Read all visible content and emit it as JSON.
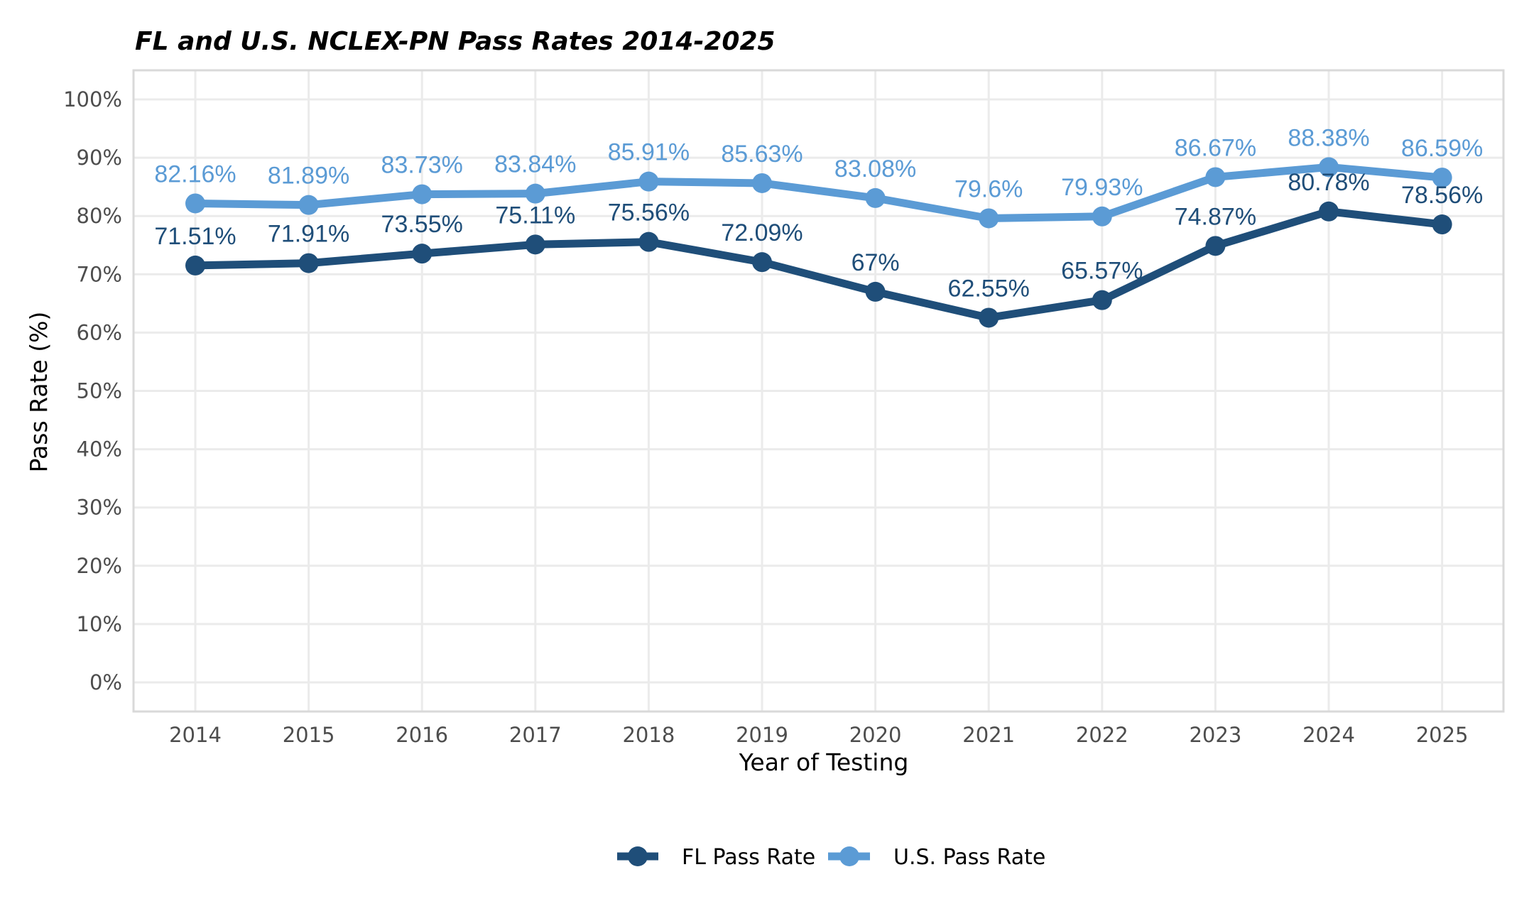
{
  "chart_data": {
    "type": "line",
    "title": "FL and U.S. NCLEX-PN Pass Rates 2014-2025",
    "xlabel": "Year of Testing",
    "ylabel": "Pass Rate (%)",
    "categories": [
      "2014",
      "2015",
      "2016",
      "2017",
      "2018",
      "2019",
      "2020",
      "2021",
      "2022",
      "2023",
      "2024",
      "2025"
    ],
    "ylim": [
      0,
      100
    ],
    "yticks": [
      0,
      10,
      20,
      30,
      40,
      50,
      60,
      70,
      80,
      90,
      100
    ],
    "ytick_labels": [
      "0%",
      "10%",
      "20%",
      "30%",
      "40%",
      "50%",
      "60%",
      "70%",
      "80%",
      "90%",
      "100%"
    ],
    "grid": true,
    "legend_position": "bottom",
    "series": [
      {
        "name": "FL Pass Rate",
        "color": "#1F4E79",
        "values": [
          71.51,
          71.91,
          73.55,
          75.11,
          75.56,
          72.09,
          67,
          62.55,
          65.57,
          74.87,
          80.78,
          78.56
        ],
        "labels": [
          "71.51%",
          "71.91%",
          "73.55%",
          "75.11%",
          "75.56%",
          "72.09%",
          "67%",
          "62.55%",
          "65.57%",
          "74.87%",
          "80.78%",
          "78.56%"
        ]
      },
      {
        "name": "U.S. Pass Rate",
        "color": "#5B9BD5",
        "values": [
          82.16,
          81.89,
          83.73,
          83.84,
          85.91,
          85.63,
          83.08,
          79.6,
          79.93,
          86.67,
          88.38,
          86.59
        ],
        "labels": [
          "82.16%",
          "81.89%",
          "83.73%",
          "83.84%",
          "85.91%",
          "85.63%",
          "83.08%",
          "79.6%",
          "79.93%",
          "86.67%",
          "88.38%",
          "86.59%"
        ]
      }
    ]
  }
}
